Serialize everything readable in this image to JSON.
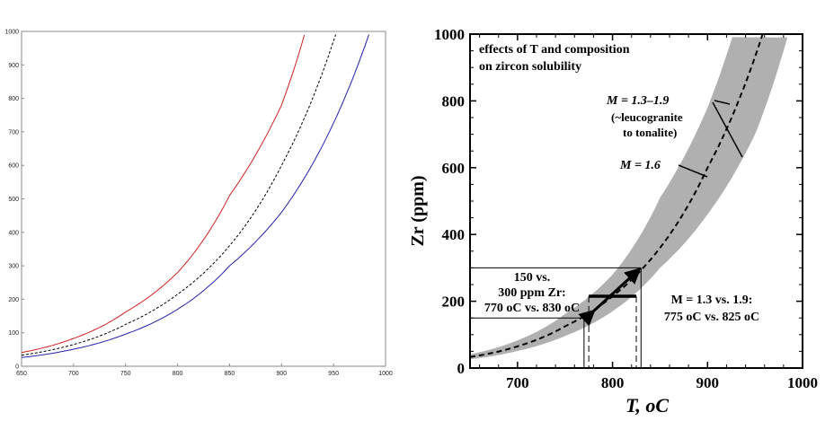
{
  "chart_data": [
    {
      "type": "line",
      "title": "",
      "xlabel": "",
      "ylabel": "",
      "xlim": [
        650,
        1000
      ],
      "ylim": [
        0,
        1000
      ],
      "x_ticks": [
        "650",
        "700",
        "750",
        "800",
        "850",
        "900",
        "950",
        "1000"
      ],
      "y_ticks": [
        "0",
        "100",
        "200",
        "300",
        "400",
        "500",
        "600",
        "700",
        "800",
        "900",
        "1000"
      ],
      "grid": false,
      "legend": "none",
      "series": [
        {
          "color": "#cc2222",
          "style": "solid",
          "x": [
            650,
            700,
            750,
            800,
            850,
            900,
            923
          ],
          "y": [
            41,
            83,
            162,
            280,
            510,
            780,
            1000
          ]
        },
        {
          "color": "#000000",
          "style": "dashed",
          "x": [
            650,
            700,
            750,
            800,
            850,
            900,
            953
          ],
          "y": [
            33,
            65,
            125,
            215,
            360,
            600,
            1000
          ]
        },
        {
          "color": "#2222aa",
          "style": "solid",
          "x": [
            650,
            700,
            750,
            800,
            850,
            900,
            985
          ],
          "y": [
            26,
            51,
            96,
            170,
            300,
            460,
            1000
          ]
        }
      ]
    },
    {
      "type": "area",
      "title": "",
      "xlabel": "T, oC",
      "ylabel": "Zr (ppm)",
      "xlim": [
        650,
        1000
      ],
      "ylim": [
        0,
        1000
      ],
      "x_ticks": [
        "700",
        "800",
        "900",
        "1000"
      ],
      "y_ticks": [
        "0",
        "200",
        "400",
        "600",
        "800",
        "1000"
      ],
      "grid": false,
      "band": {
        "color": "#b0b0b0",
        "upper": {
          "x": [
            650,
            700,
            750,
            800,
            850,
            900,
            927
          ],
          "y": [
            41,
            83,
            162,
            280,
            510,
            780,
            1000
          ]
        },
        "lower": {
          "x": [
            650,
            700,
            750,
            800,
            850,
            900,
            950,
            985
          ],
          "y": [
            26,
            51,
            96,
            170,
            300,
            460,
            700,
            1000
          ]
        }
      },
      "series": [
        {
          "color": "#000000",
          "style": "dashed",
          "x": [
            650,
            700,
            750,
            800,
            850,
            900,
            958
          ],
          "y": [
            33,
            65,
            125,
            215,
            360,
            600,
            1000
          ]
        }
      ],
      "reference": {
        "zr_levels": [
          150,
          300
        ],
        "temps_solid": [
          770,
          830
        ],
        "temps_dashed": [
          775,
          825
        ]
      },
      "annotations": {
        "box_title_1": "effects of T and composition",
        "box_title_2": "on zircon solubility",
        "band_label": "M = 1.3–1.9",
        "band_label_sub1": "(~leucogranite",
        "band_label_sub2": "to tonalite)",
        "curve_label": "M = 1.6",
        "left_note_1": "150 vs.",
        "left_note_2": "300 ppm Zr:",
        "left_note_3": "770 oC vs. 830 oC",
        "right_note_1": "M = 1.3 vs. 1.9:",
        "right_note_2": "775 oC vs. 825 oC"
      }
    }
  ]
}
